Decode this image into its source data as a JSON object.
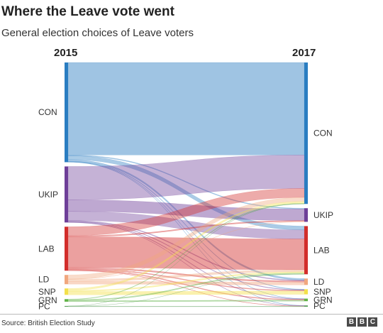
{
  "header": {
    "title": "Where the Leave vote went",
    "subtitle": "General election choices of Leave voters"
  },
  "footer": {
    "source": "Source: British Election Study",
    "logo_letters": [
      "B",
      "B",
      "C"
    ]
  },
  "chart_data": {
    "type": "sankey",
    "title": "Where the Leave vote went",
    "subtitle": "General election choices of Leave voters",
    "left_label": "2015",
    "right_label": "2017",
    "nodes": [
      {
        "id": "CON",
        "label": "CON",
        "color": "#2a7dc1"
      },
      {
        "id": "UKIP",
        "label": "UKIP",
        "color": "#6e3f98"
      },
      {
        "id": "LAB",
        "label": "LAB",
        "color": "#d22d2b"
      },
      {
        "id": "LD",
        "label": "LD",
        "color": "#f1a77e"
      },
      {
        "id": "SNP",
        "label": "SNP",
        "color": "#f3e04b"
      },
      {
        "id": "GRN",
        "label": "GRN",
        "color": "#5fb246"
      },
      {
        "id": "PC",
        "label": "PC",
        "color": "#5a9e5b"
      }
    ],
    "flows": [
      {
        "from": "CON",
        "to": "CON",
        "value": 36
      },
      {
        "from": "CON",
        "to": "UKIP",
        "value": 0.3
      },
      {
        "from": "CON",
        "to": "LAB",
        "value": 1.5
      },
      {
        "from": "CON",
        "to": "LD",
        "value": 0.6
      },
      {
        "from": "CON",
        "to": "SNP",
        "value": 0.2
      },
      {
        "from": "CON",
        "to": "GRN",
        "value": 0.1
      },
      {
        "from": "CON",
        "to": "PC",
        "value": 0.1
      },
      {
        "from": "UKIP",
        "to": "CON",
        "value": 13
      },
      {
        "from": "UKIP",
        "to": "UKIP",
        "value": 4.5
      },
      {
        "from": "UKIP",
        "to": "LAB",
        "value": 3.5
      },
      {
        "from": "UKIP",
        "to": "LD",
        "value": 0.3
      },
      {
        "from": "UKIP",
        "to": "SNP",
        "value": 0.2
      },
      {
        "from": "UKIP",
        "to": "GRN",
        "value": 0.2
      },
      {
        "from": "UKIP",
        "to": "PC",
        "value": 0.1
      },
      {
        "from": "LAB",
        "to": "CON",
        "value": 3.5
      },
      {
        "from": "LAB",
        "to": "UKIP",
        "value": 0.4
      },
      {
        "from": "LAB",
        "to": "LAB",
        "value": 12
      },
      {
        "from": "LAB",
        "to": "LD",
        "value": 0.5
      },
      {
        "from": "LAB",
        "to": "SNP",
        "value": 0.3
      },
      {
        "from": "LAB",
        "to": "GRN",
        "value": 0.3
      },
      {
        "from": "LAB",
        "to": "PC",
        "value": 0.1
      },
      {
        "from": "LD",
        "to": "CON",
        "value": 1.6
      },
      {
        "from": "LD",
        "to": "UKIP",
        "value": 0.1
      },
      {
        "from": "LD",
        "to": "LAB",
        "value": 0.8
      },
      {
        "from": "LD",
        "to": "LD",
        "value": 1.1
      },
      {
        "from": "SNP",
        "to": "CON",
        "value": 0.7
      },
      {
        "from": "SNP",
        "to": "LAB",
        "value": 0.5
      },
      {
        "from": "SNP",
        "to": "SNP",
        "value": 1.3
      },
      {
        "from": "GRN",
        "to": "CON",
        "value": 0.2
      },
      {
        "from": "GRN",
        "to": "LAB",
        "value": 0.4
      },
      {
        "from": "GRN",
        "to": "GRN",
        "value": 0.4
      },
      {
        "from": "PC",
        "to": "CON",
        "value": 0.05
      },
      {
        "from": "PC",
        "to": "LAB",
        "value": 0.05
      },
      {
        "from": "PC",
        "to": "PC",
        "value": 0.2
      }
    ]
  }
}
